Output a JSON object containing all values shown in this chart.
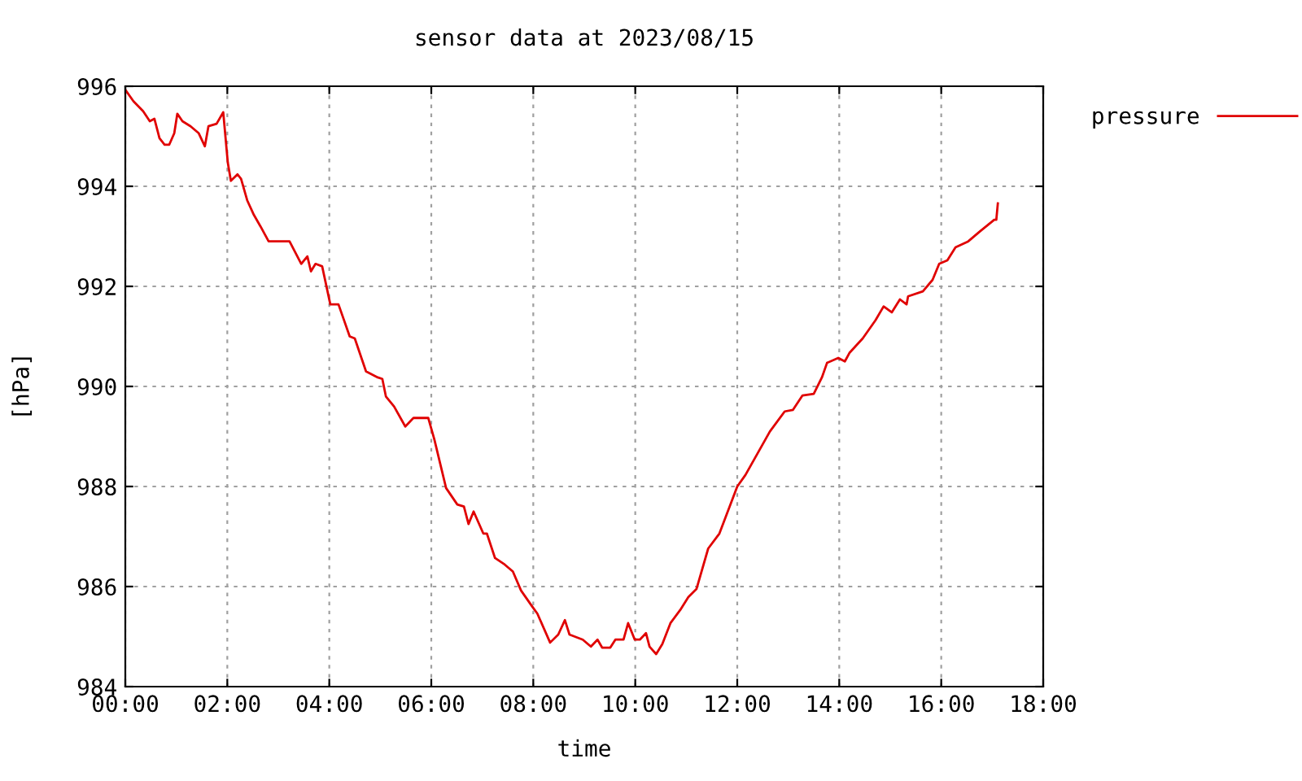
{
  "chart_data": {
    "type": "line",
    "title": "sensor data at 2023/08/15",
    "xlabel": "time",
    "ylabel": "[hPa]",
    "series": [
      {
        "name": "pressure",
        "color": "#e00000",
        "x": [
          0.0,
          0.16,
          0.35,
          0.48,
          0.57,
          0.67,
          0.77,
          0.86,
          0.96,
          1.02,
          1.12,
          1.28,
          1.44,
          1.56,
          1.63,
          1.79,
          1.92,
          2.01,
          2.07,
          2.2,
          2.27,
          2.39,
          2.52,
          2.65,
          2.81,
          2.97,
          3.22,
          3.45,
          3.57,
          3.64,
          3.73,
          3.86,
          4.02,
          4.18,
          4.4,
          4.5,
          4.72,
          4.95,
          5.04,
          5.11,
          5.27,
          5.49,
          5.65,
          5.81,
          5.94,
          6.06,
          6.29,
          6.51,
          6.64,
          6.73,
          6.83,
          7.02,
          7.09,
          7.25,
          7.44,
          7.6,
          7.76,
          7.98,
          8.08,
          8.33,
          8.49,
          8.62,
          8.71,
          8.97,
          9.13,
          9.26,
          9.35,
          9.51,
          9.61,
          9.77,
          9.86,
          9.99,
          10.09,
          10.21,
          10.28,
          10.41,
          10.53,
          10.69,
          10.88,
          11.04,
          11.2,
          11.43,
          11.65,
          12.0,
          12.16,
          12.64,
          12.93,
          13.09,
          13.28,
          13.5,
          13.66,
          13.76,
          13.98,
          14.11,
          14.2,
          14.46,
          14.71,
          14.87,
          15.03,
          15.19,
          15.32,
          15.35,
          15.64,
          15.83,
          15.96,
          16.12,
          16.28,
          16.53,
          16.76,
          17.04,
          17.08,
          17.11
        ],
        "values": [
          995.93,
          995.7,
          995.5,
          995.3,
          995.35,
          994.96,
          994.83,
          994.83,
          995.06,
          995.45,
          995.3,
          995.2,
          995.06,
          994.8,
          995.2,
          995.25,
          995.48,
          994.47,
          994.11,
          994.24,
          994.15,
          993.72,
          993.43,
          993.2,
          992.9,
          992.9,
          992.9,
          992.45,
          992.6,
          992.3,
          992.45,
          992.4,
          991.64,
          991.64,
          991.0,
          990.96,
          990.3,
          990.18,
          990.15,
          989.8,
          989.6,
          989.2,
          989.37,
          989.37,
          989.37,
          988.94,
          987.97,
          987.64,
          987.6,
          987.25,
          987.5,
          987.06,
          987.06,
          986.57,
          986.44,
          986.3,
          985.92,
          985.6,
          985.46,
          984.88,
          985.04,
          985.33,
          985.04,
          984.94,
          984.8,
          984.94,
          984.78,
          984.78,
          984.94,
          984.94,
          985.27,
          984.94,
          984.94,
          985.07,
          984.8,
          984.65,
          984.85,
          985.27,
          985.53,
          985.79,
          985.95,
          986.76,
          987.06,
          988.0,
          988.23,
          989.1,
          989.5,
          989.53,
          989.82,
          989.85,
          990.18,
          990.47,
          990.57,
          990.5,
          990.67,
          990.96,
          991.32,
          991.6,
          991.48,
          991.74,
          991.64,
          991.8,
          991.9,
          992.13,
          992.45,
          992.52,
          992.78,
          992.9,
          993.1,
          993.33,
          993.33,
          993.66
        ]
      }
    ],
    "xlim": [
      0,
      18
    ],
    "xticks": [
      {
        "value": 0,
        "label": "00:00"
      },
      {
        "value": 2,
        "label": "02:00"
      },
      {
        "value": 4,
        "label": "04:00"
      },
      {
        "value": 6,
        "label": "06:00"
      },
      {
        "value": 8,
        "label": "08:00"
      },
      {
        "value": 10,
        "label": "10:00"
      },
      {
        "value": 12,
        "label": "12:00"
      },
      {
        "value": 14,
        "label": "14:00"
      },
      {
        "value": 16,
        "label": "16:00"
      },
      {
        "value": 18,
        "label": "18:00"
      }
    ],
    "ylim": [
      984,
      996
    ],
    "yticks": [
      984,
      986,
      988,
      990,
      992,
      994,
      996
    ],
    "grid": true,
    "legend": "top right",
    "marker": "none",
    "line_style": "solid"
  }
}
